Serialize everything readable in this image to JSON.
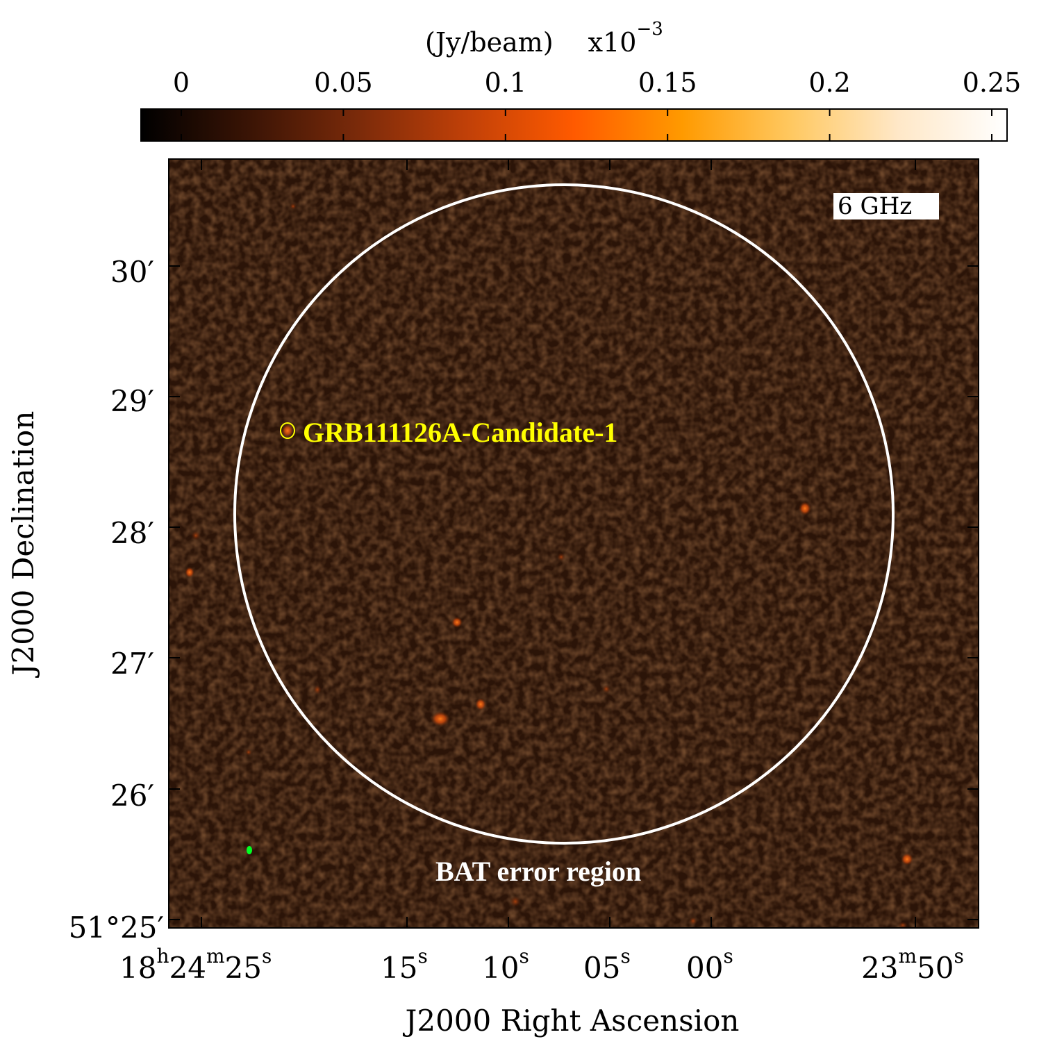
{
  "colorbar": {
    "unit_label": "(Jy/beam)",
    "scale_base": "x10",
    "scale_exponent": "−3",
    "ticks": [
      {
        "label": "0",
        "value": 0
      },
      {
        "label": "0.05",
        "value": 0.05
      },
      {
        "label": "0.1",
        "value": 0.1
      },
      {
        "label": "0.15",
        "value": 0.15
      },
      {
        "label": "0.2",
        "value": 0.2
      },
      {
        "label": "0.25",
        "value": 0.25
      }
    ],
    "colors": [
      "#000000",
      "#3a1405",
      "#7a2a0a",
      "#c04008",
      "#ff5a00",
      "#ff9a00",
      "#ffc860",
      "#ffe8c8",
      "#ffffff"
    ]
  },
  "image": {
    "frequency_label": "6 GHz",
    "background_color": "#2b1408",
    "circle_label": "BAT error region",
    "circle_color": "#ffffff",
    "candidate_label": "GRB111126A-Candidate-1",
    "candidate_color": "#ffff00",
    "beam_color": "#00ff22"
  },
  "axes": {
    "x_title": "J2000 Right Ascension",
    "y_title": "J2000 Declination",
    "x_ticks": [
      {
        "h": "18",
        "hs": "h",
        "m": "24",
        "ms": "m",
        "s": "25",
        "ss": "s"
      },
      {
        "s": "15",
        "ss": "s"
      },
      {
        "s": "10",
        "ss": "s"
      },
      {
        "s": "05",
        "ss": "s"
      },
      {
        "s": "00",
        "ss": "s"
      },
      {
        "m": "23",
        "ms": "m",
        "s": "50",
        "ss": "s"
      }
    ],
    "y_ticks": [
      {
        "label": "30′"
      },
      {
        "label": "29′"
      },
      {
        "label": "28′"
      },
      {
        "label": "27′"
      },
      {
        "label": "26′"
      },
      {
        "label": "51°25′"
      }
    ]
  }
}
